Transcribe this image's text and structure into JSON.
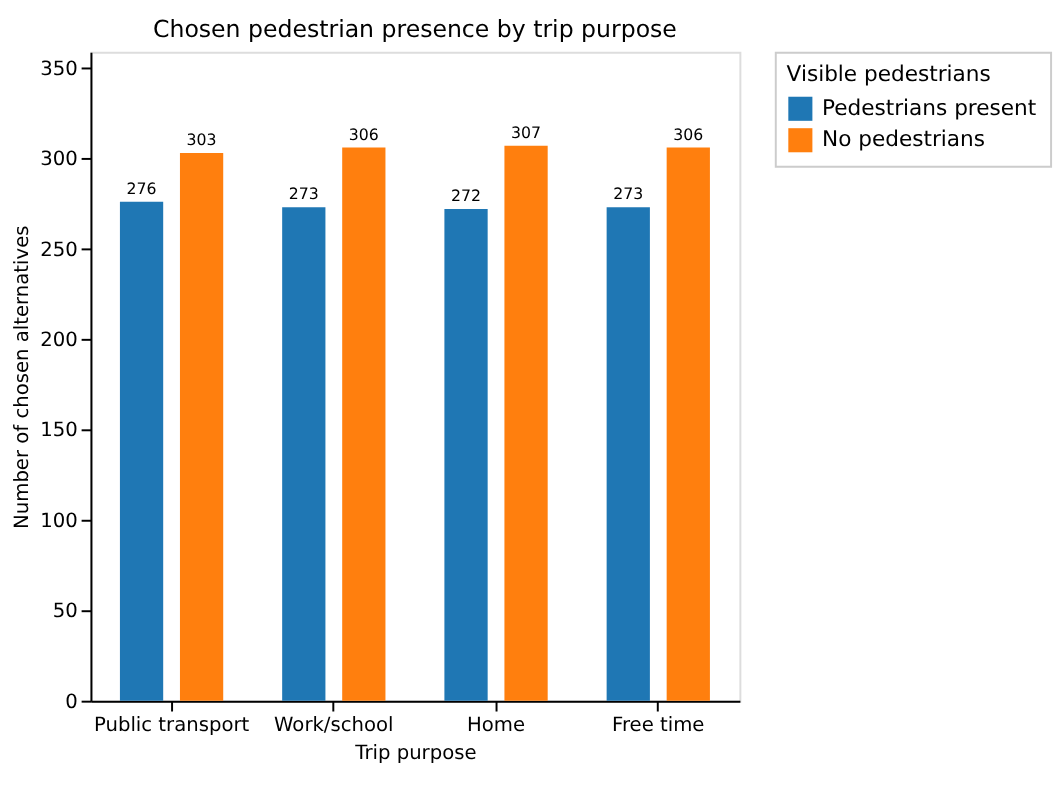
{
  "chart_data": {
    "type": "bar",
    "title": "Chosen pedestrian presence by trip purpose",
    "xlabel": "Trip purpose",
    "ylabel": "Number of chosen alternatives",
    "legend_title": "Visible pedestrians",
    "categories": [
      "Public transport",
      "Work/school",
      "Home",
      "Free time"
    ],
    "series": [
      {
        "name": "Pedestrians present",
        "color": "#1f77b4",
        "values": [
          276,
          273,
          272,
          273
        ]
      },
      {
        "name": "No pedestrians",
        "color": "#ff7f0e",
        "values": [
          303,
          306,
          307,
          306
        ]
      }
    ],
    "ylim": [
      0,
      359
    ],
    "yticks": [
      0,
      50,
      100,
      150,
      200,
      250,
      300,
      350
    ],
    "data_labels": true,
    "grid": false,
    "legend": "right"
  }
}
